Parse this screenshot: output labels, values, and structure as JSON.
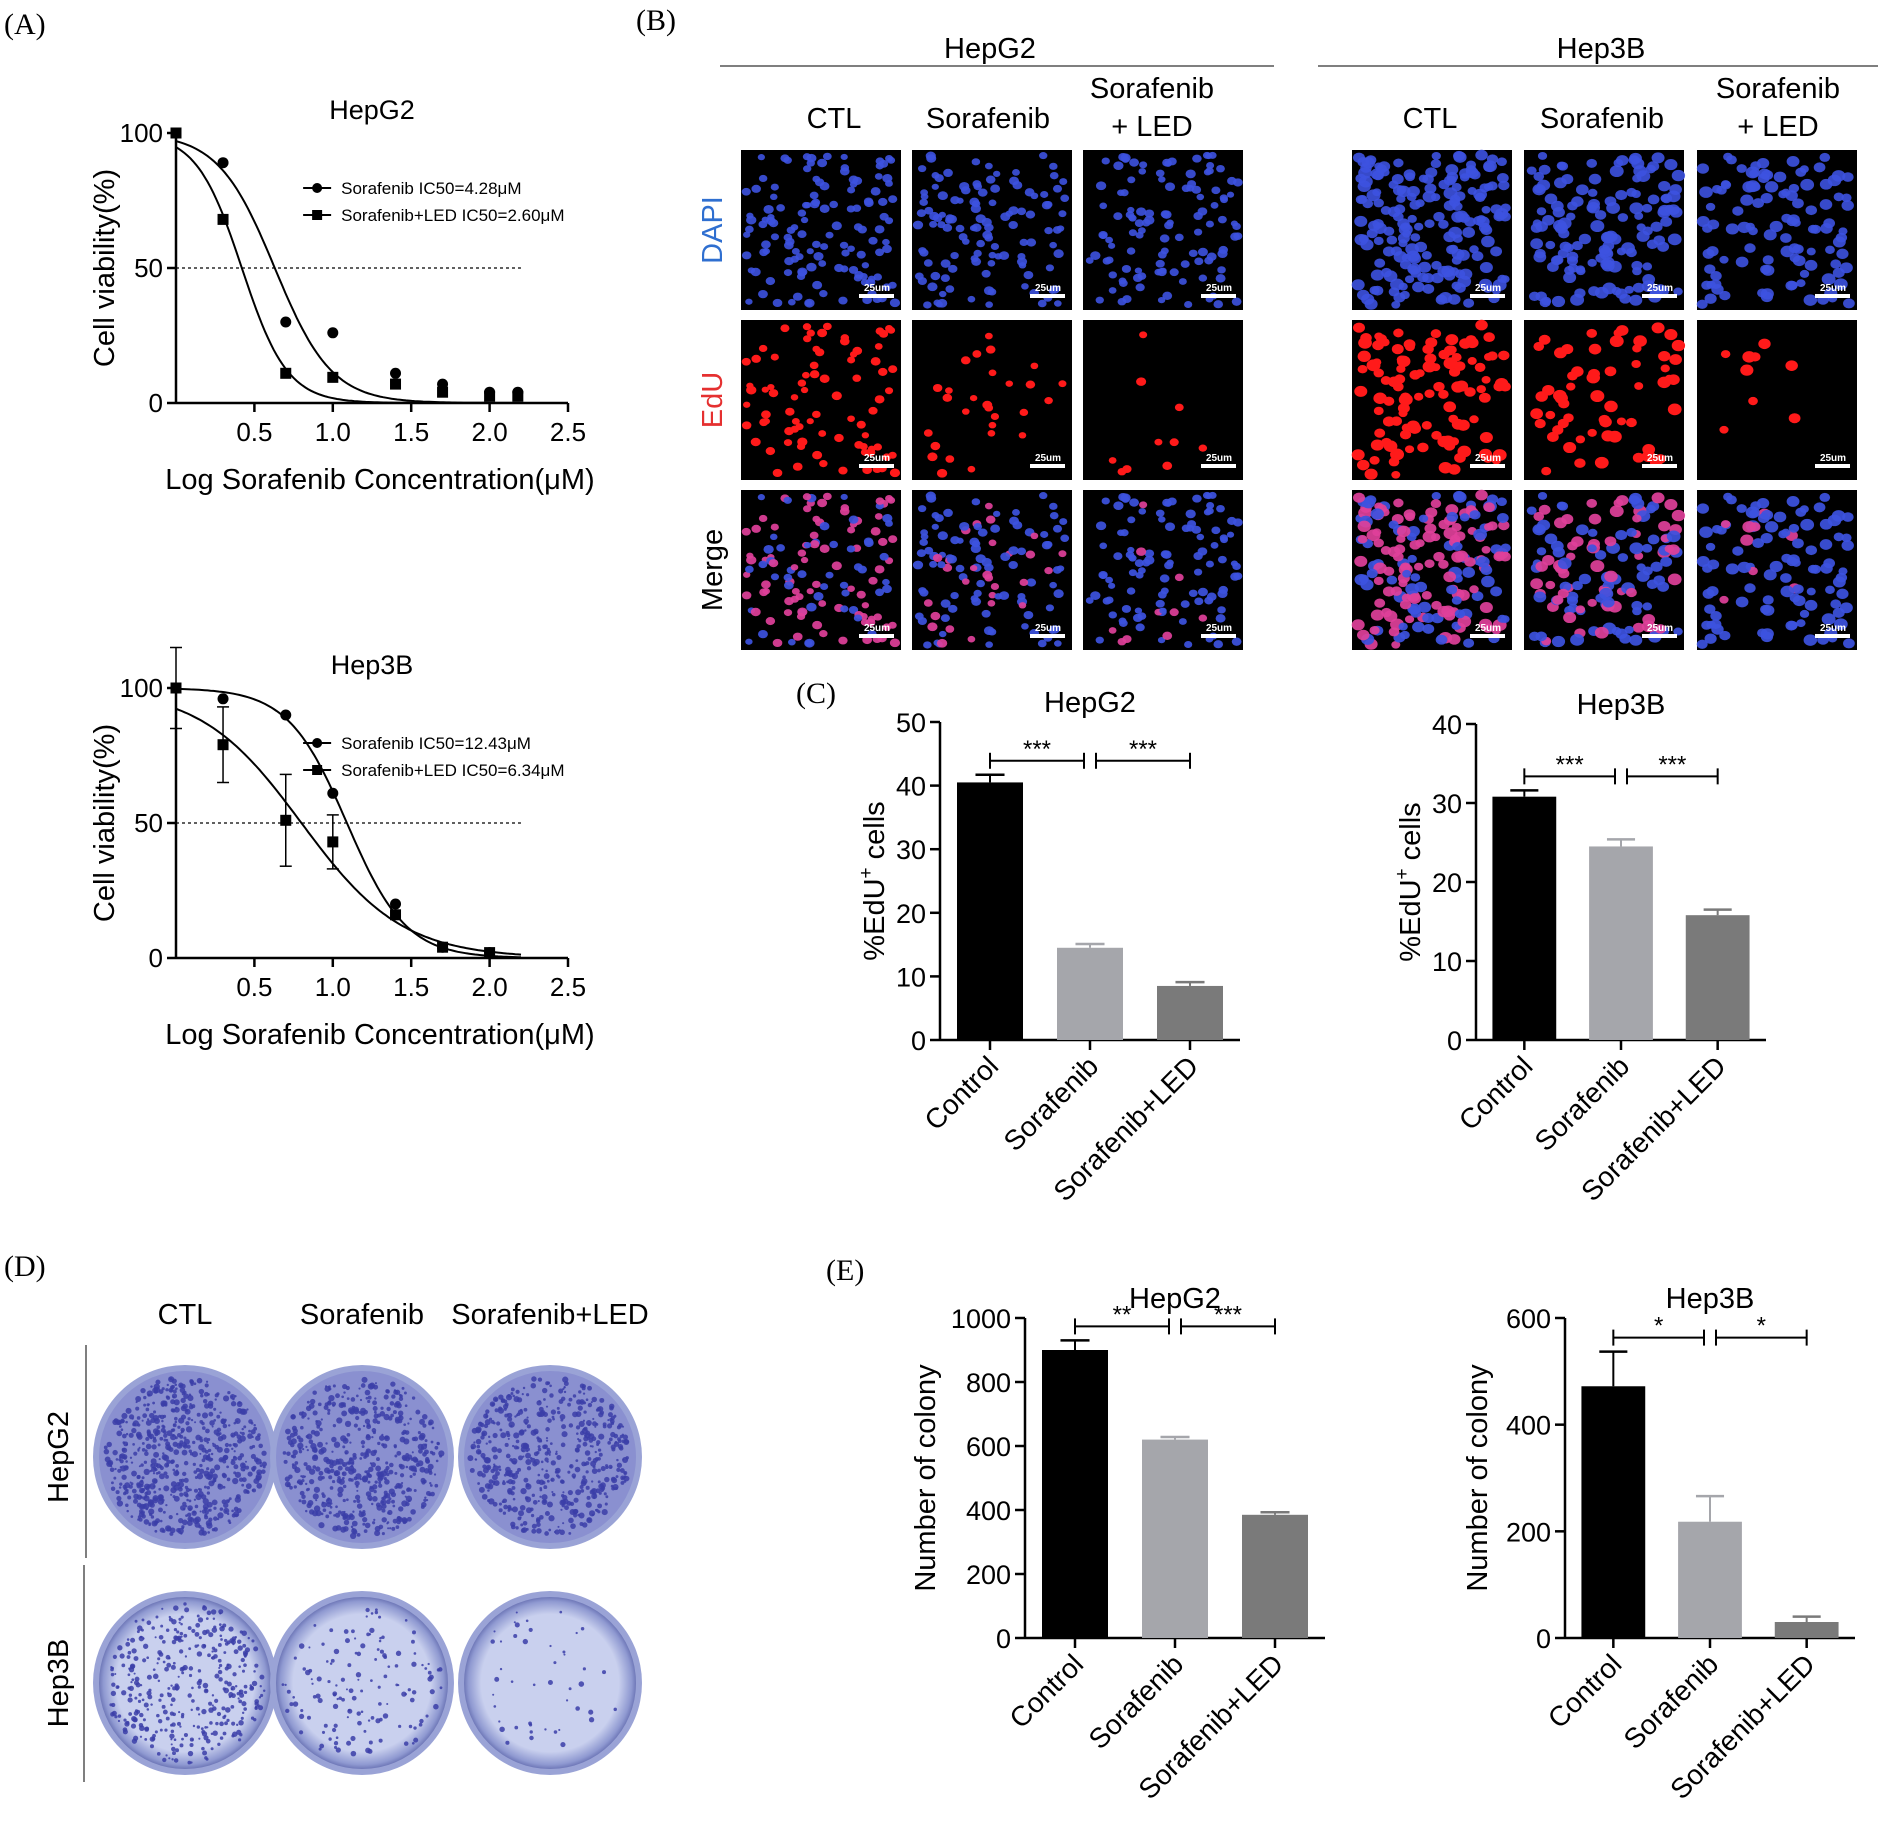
{
  "panel_labels": [
    "(A)",
    "(B)",
    "(C)",
    "(D)",
    "(E)"
  ],
  "colors": {
    "control": "#000000",
    "sorafenib": "#a5a6ab",
    "sorafenib_led": "#7a7a7a",
    "dapi": "#2f6fd0",
    "edu": "#e53030",
    "nucleus_blue": "#3d52e0",
    "nucleus_red": "#ff1a1a",
    "dish_stain": "#3b3ea8",
    "dish_bg": "#b8c0e6"
  },
  "panel_b": {
    "groups": [
      "HepG2",
      "Hep3B"
    ],
    "columns": [
      "CTL",
      "Sorafenib",
      "Sorafenib\n+ LED"
    ],
    "rows": [
      "DAPI",
      "EdU",
      "Merge"
    ],
    "scale_bar": "25um"
  },
  "panel_d": {
    "columns": [
      "CTL",
      "Sorafenib",
      "Sorafenib+LED"
    ],
    "rows": [
      "HepG2",
      "Hep3B"
    ]
  },
  "chart_data": [
    {
      "id": "A-HepG2",
      "type": "scatter",
      "title": "HepG2",
      "xlabel": "Log Sorafenib Concentration(μM)",
      "ylabel": "Cell viability(%)",
      "xlim": [
        0,
        2.5
      ],
      "ylim": [
        0,
        100
      ],
      "xticks": [
        "0.5",
        "1.0",
        "1.5",
        "2.0",
        "2.5"
      ],
      "yticks": [
        "0",
        "50",
        "100"
      ],
      "reference_line_y": 50,
      "legend_position": "top-right",
      "series": [
        {
          "name": "Sorafenib IC50=4.28μM",
          "marker": "circle",
          "x": [
            0,
            0.3,
            0.7,
            1.0,
            1.4,
            1.7,
            2.0,
            2.18
          ],
          "y": [
            100,
            89,
            30,
            26,
            11,
            7,
            4,
            4
          ],
          "fit_logic50": 0.63,
          "fit_hill": 2.4
        },
        {
          "name": "Sorafenib+LED IC50=2.60μM",
          "marker": "square",
          "x": [
            0,
            0.3,
            0.7,
            1.0,
            1.4,
            1.7,
            2.0,
            2.18
          ],
          "y": [
            100,
            68,
            11,
            9.5,
            7,
            4,
            2.5,
            2.5
          ],
          "fit_logic50": 0.42,
          "fit_hill": 3.0
        }
      ]
    },
    {
      "id": "A-Hep3B",
      "type": "scatter",
      "title": "Hep3B",
      "xlabel": "Log Sorafenib Concentration(μM)",
      "ylabel": "Cell viability(%)",
      "xlim": [
        0,
        2.5
      ],
      "ylim": [
        0,
        100
      ],
      "xticks": [
        "0.5",
        "1.0",
        "1.5",
        "2.0",
        "2.5"
      ],
      "yticks": [
        "0",
        "50",
        "100"
      ],
      "reference_line_y": 50,
      "legend_position": "top-right",
      "series": [
        {
          "name": "Sorafenib IC50=12.43μM",
          "marker": "circle",
          "x": [
            0,
            0.3,
            0.7,
            1.0,
            1.4,
            1.7,
            2.0
          ],
          "y": [
            100,
            96,
            90,
            61,
            20,
            4,
            2
          ],
          "err": [
            0,
            0,
            0,
            0,
            0,
            0,
            0
          ],
          "fit_logic50": 1.09,
          "fit_hill": 2.3
        },
        {
          "name": "Sorafenib+LED IC50=6.34μM",
          "marker": "square",
          "x": [
            0,
            0.3,
            0.7,
            1.0,
            1.4,
            1.7,
            2.0
          ],
          "y": [
            100,
            79,
            51,
            43,
            16,
            4,
            2
          ],
          "err": [
            15,
            14,
            17,
            10,
            0,
            0,
            0
          ],
          "fit_logic50": 0.8,
          "fit_hill": 1.35
        }
      ]
    },
    {
      "id": "C-HepG2",
      "type": "bar",
      "title": "HepG2",
      "ylabel": "%EdU+ cells",
      "categories": [
        "Control",
        "Sorafenib",
        "Sorafenib+LED"
      ],
      "values": [
        40.5,
        14.5,
        8.5
      ],
      "errors": [
        1.2,
        0.6,
        0.6
      ],
      "ylim": [
        0,
        50
      ],
      "yticks": [
        "0",
        "10",
        "20",
        "30",
        "40",
        "50"
      ],
      "significance": [
        {
          "from": 0,
          "to": 1,
          "label": "***"
        },
        {
          "from": 1,
          "to": 2,
          "label": "***"
        }
      ]
    },
    {
      "id": "C-Hep3B",
      "type": "bar",
      "title": "Hep3B",
      "ylabel": "%EdU+ cells",
      "categories": [
        "Control",
        "Sorafenib",
        "Sorafenib+LED"
      ],
      "values": [
        30.8,
        24.5,
        15.8
      ],
      "errors": [
        0.8,
        0.9,
        0.7
      ],
      "ylim": [
        0,
        40
      ],
      "yticks": [
        "0",
        "10",
        "20",
        "30",
        "40"
      ],
      "significance": [
        {
          "from": 0,
          "to": 1,
          "label": "***"
        },
        {
          "from": 1,
          "to": 2,
          "label": "***"
        }
      ]
    },
    {
      "id": "E-HepG2",
      "type": "bar",
      "title": "HepG2",
      "ylabel": "Number of colony",
      "categories": [
        "Control",
        "Sorafenib",
        "Sorafenib+LED"
      ],
      "values": [
        900,
        620,
        385
      ],
      "errors": [
        30,
        8,
        8
      ],
      "ylim": [
        0,
        1000
      ],
      "yticks": [
        "0",
        "200",
        "400",
        "600",
        "800",
        "1000"
      ],
      "significance": [
        {
          "from": 0,
          "to": 1,
          "label": "**"
        },
        {
          "from": 1,
          "to": 2,
          "label": "***"
        }
      ]
    },
    {
      "id": "E-Hep3B",
      "type": "bar",
      "title": "Hep3B",
      "ylabel": "Number of colony",
      "categories": [
        "Control",
        "Sorafenib",
        "Sorafenib+LED"
      ],
      "values": [
        472,
        218,
        30
      ],
      "errors": [
        65,
        48,
        10
      ],
      "ylim": [
        0,
        600
      ],
      "yticks": [
        "0",
        "200",
        "400",
        "600"
      ],
      "significance": [
        {
          "from": 0,
          "to": 1,
          "label": "*"
        },
        {
          "from": 1,
          "to": 2,
          "label": "*"
        }
      ]
    }
  ]
}
